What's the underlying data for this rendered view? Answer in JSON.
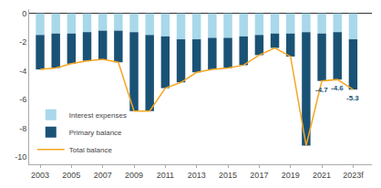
{
  "chart_data": {
    "type": "bar",
    "stacked": true,
    "x": [
      2003,
      2004,
      2005,
      2006,
      2007,
      2008,
      2009,
      2010,
      2011,
      2012,
      2013,
      2014,
      2015,
      2016,
      2017,
      2018,
      2019,
      2020,
      2021,
      2022,
      2023
    ],
    "series": [
      {
        "name": "Interest expenses",
        "type": "bar",
        "color": "#a8d8ea",
        "values": [
          -1.5,
          -1.4,
          -1.4,
          -1.3,
          -1.2,
          -1.2,
          -1.3,
          -1.5,
          -1.6,
          -1.8,
          -1.8,
          -1.7,
          -1.7,
          -1.6,
          -1.5,
          -1.4,
          -1.4,
          -1.3,
          -1.4,
          -1.3,
          -1.8
        ]
      },
      {
        "name": "Primary balance",
        "type": "bar",
        "color": "#1a5276",
        "values": [
          -2.4,
          -2.4,
          -2.1,
          -2.0,
          -2.0,
          -2.2,
          -5.5,
          -5.3,
          -3.6,
          -3.0,
          -2.3,
          -2.2,
          -2.1,
          -2.0,
          -1.4,
          -1.0,
          -1.6,
          -7.9,
          -3.3,
          -3.3,
          -3.5
        ]
      },
      {
        "name": "Total balance",
        "type": "line",
        "color": "#f5a623",
        "values": [
          -3.9,
          -3.8,
          -3.5,
          -3.3,
          -3.2,
          -3.4,
          -6.8,
          -6.8,
          -5.2,
          -4.8,
          -4.1,
          -3.9,
          -3.8,
          -3.6,
          -2.9,
          -2.4,
          -3.0,
          -9.2,
          -4.7,
          -4.6,
          -5.3
        ]
      }
    ],
    "annotations": [
      {
        "x": 2021,
        "y": -4.7,
        "text": "-4.7"
      },
      {
        "x": 2022,
        "y": -4.6,
        "text": "-4.6"
      },
      {
        "x": 2023,
        "y": -5.3,
        "text": "-5.3"
      }
    ],
    "annotation_color": "#1a5276",
    "xlim": [
      2002.3,
      2024.2
    ],
    "xticks": [
      2003,
      2005,
      2007,
      2009,
      2011,
      2013,
      2015,
      2017,
      2019,
      2021,
      {
        "value": 2023,
        "label": "2023f"
      }
    ],
    "ylim": [
      -10.5,
      0.3
    ],
    "yticks": [
      0,
      -2,
      -4,
      -6,
      -8,
      -10
    ],
    "grid": false,
    "legend": "lower left"
  }
}
